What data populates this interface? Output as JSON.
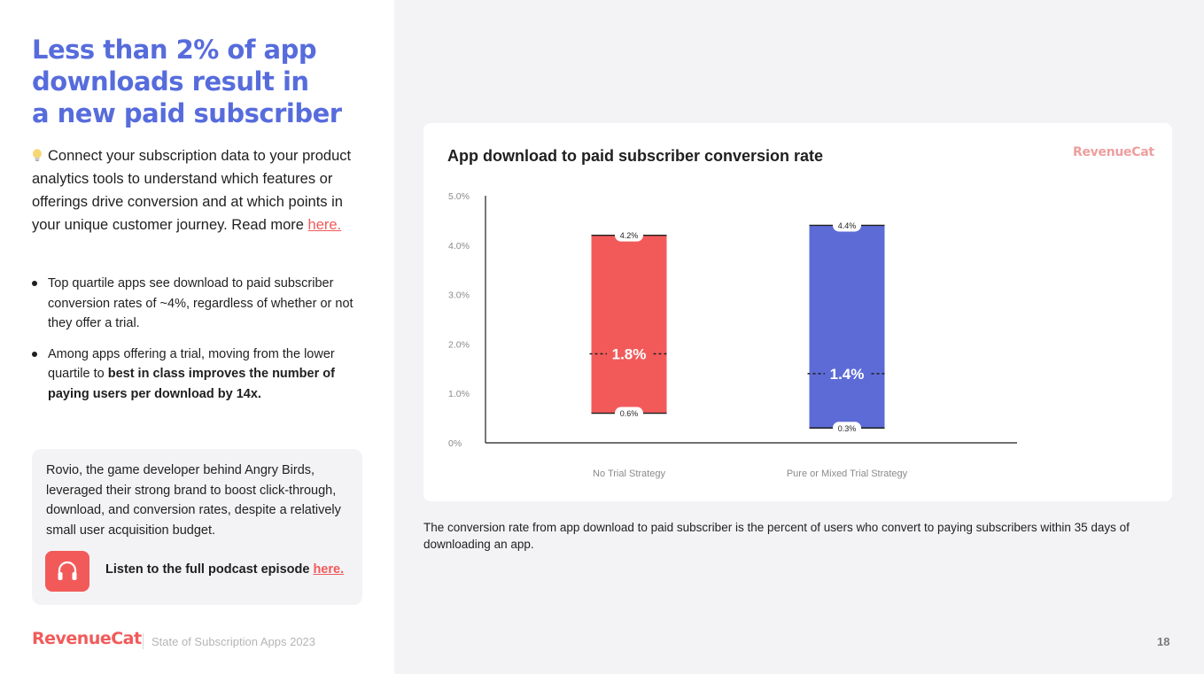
{
  "slide": {
    "title_lines": [
      "Less than 2% of app",
      "downloads result in",
      "a new paid subscriber"
    ],
    "intro_text": "Connect your subscription data to your product analytics tools to understand which features or offerings drive conversion and at which points in your unique customer journey. Read more ",
    "intro_link": "here.",
    "bullet1": "Top quartile apps see download to paid subscriber conversion rates of ~4%, regardless of whether or not they offer a trial.",
    "bullet2_a": "Among apps offering a trial, moving from the lower quartile to ",
    "bullet2_b": "best in class improves the number of paying users per download by 14x.",
    "callout_text": "Rovio, the game developer behind Angry Birds, leveraged their strong brand to boost click-through, download, and conversion rates, despite a relatively small user acquisition budget.",
    "podcast_text": "Listen to the full podcast episode ",
    "podcast_link": "here.",
    "footer_logo": "RevenueCat",
    "footer_subtitle": "State of Subscription Apps 2023",
    "page_number": "18",
    "card_logo": "RevenueCat",
    "caption": "The conversion rate from app download to paid subscriber is the percent of users who convert to paying subscribers within 35 days of downloading an app."
  },
  "colors": {
    "accent_blue": "#576cdc",
    "accent_red": "#f25a5a",
    "bar_red": "#f25a5a",
    "bar_blue": "#5c6bd6"
  },
  "icons": {
    "bulb": "lightbulb-icon",
    "podcast": "headphones-icon"
  },
  "chart_data": {
    "type": "bar",
    "title": "App download to paid subscriber conversion rate",
    "categories": [
      "No Trial Strategy",
      "Pure or Mixed Trial Strategy"
    ],
    "lower_quartile": [
      0.6,
      0.3
    ],
    "median": [
      1.8,
      1.4
    ],
    "upper_quartile": [
      4.2,
      4.4
    ],
    "lower_labels": [
      "0.6%",
      "0.3%"
    ],
    "median_labels": [
      "1.8%",
      "1.4%"
    ],
    "upper_labels": [
      "4.2%",
      "4.4%"
    ],
    "y_ticks": [
      0,
      1,
      2,
      3,
      4,
      5
    ],
    "y_tick_labels": [
      "0%",
      "1.0%",
      "2.0%",
      "3.0%",
      "4.0%",
      "5.0%"
    ],
    "ylim": [
      0,
      5
    ],
    "grid": false,
    "xlabel": "",
    "ylabel": ""
  }
}
